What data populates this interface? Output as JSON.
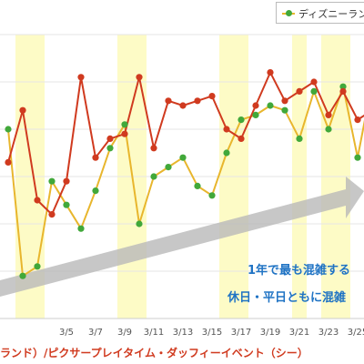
{
  "chart_data": {
    "type": "line",
    "x_labels": [
      "3/5",
      "3/7",
      "3/9",
      "3/11",
      "3/13",
      "3/15",
      "3/17",
      "3/19",
      "3/21",
      "3/23",
      "3/25"
    ],
    "highlight_days": [
      "3/2",
      "3/3",
      "3/9",
      "3/10",
      "3/16",
      "3/17",
      "3/21",
      "3/23",
      "3/24"
    ],
    "ylim": [
      0,
      60
    ],
    "grid": true,
    "legend_position": "top-right",
    "series": [
      {
        "name": "ディズニーランド",
        "color": "#e8b62d",
        "marker_color": "#41a83a",
        "x": [
          "3/1",
          "3/2",
          "3/3",
          "3/4",
          "3/5",
          "3/6",
          "3/7",
          "3/8",
          "3/9",
          "3/10",
          "3/11",
          "3/12",
          "3/13",
          "3/14",
          "3/15",
          "3/16",
          "3/17",
          "3/18",
          "3/19",
          "3/20",
          "3/21",
          "3/22",
          "3/23",
          "3/24",
          "3/25",
          "3/26"
        ],
        "values": [
          40,
          9,
          11,
          29,
          24,
          19,
          27,
          36,
          41,
          20,
          30,
          32,
          34,
          28,
          26,
          35,
          42,
          43,
          45,
          44,
          38,
          48,
          40,
          49,
          34,
          50
        ]
      },
      {
        "name": "",
        "color": "#d03a1f",
        "marker_color": "#d03a1f",
        "x": [
          "3/1",
          "3/2",
          "3/3",
          "3/4",
          "3/5",
          "3/6",
          "3/7",
          "3/8",
          "3/9",
          "3/10",
          "3/11",
          "3/12",
          "3/13",
          "3/14",
          "3/15",
          "3/16",
          "3/17",
          "3/18",
          "3/19",
          "3/20",
          "3/21",
          "3/22",
          "3/23",
          "3/24",
          "3/25",
          "3/26"
        ],
        "values": [
          33,
          44,
          25,
          22,
          29,
          51,
          34,
          38,
          39,
          51,
          36,
          46,
          45,
          46,
          47,
          40,
          38,
          45,
          52,
          46,
          48,
          50,
          43,
          48,
          42,
          44
        ]
      }
    ]
  },
  "legend": {
    "label": "ディズニーランド"
  },
  "annotations": {
    "line1": "1年で最も混雑する",
    "line2": "休日・平日ともに混雑"
  },
  "footer": {
    "text": "ランド）/ピクサープレイタイム・ダッフィーイベント（シー）"
  }
}
